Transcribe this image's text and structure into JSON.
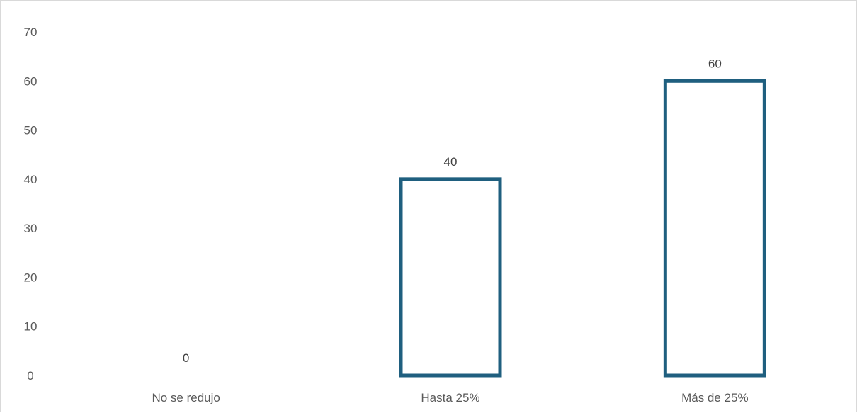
{
  "chart_data": {
    "type": "bar",
    "title": "",
    "xlabel": "",
    "ylabel": "",
    "categories": [
      "No se reduijo",
      "Hasta 25%",
      "Más de 25%"
    ],
    "values": [
      0,
      40,
      60
    ],
    "data_labels": [
      "0",
      "40",
      "60"
    ],
    "ylim": [
      0,
      70
    ],
    "y_ticks": [
      0,
      10,
      20,
      30,
      40,
      50,
      60,
      70
    ],
    "grid": false,
    "legend": "none",
    "bar_style": "outline",
    "colors": {
      "bar_stroke": "#1f5f7f",
      "bar_fill": "#ffffff",
      "text": "#595959",
      "frame": "#d9d9d9"
    }
  }
}
